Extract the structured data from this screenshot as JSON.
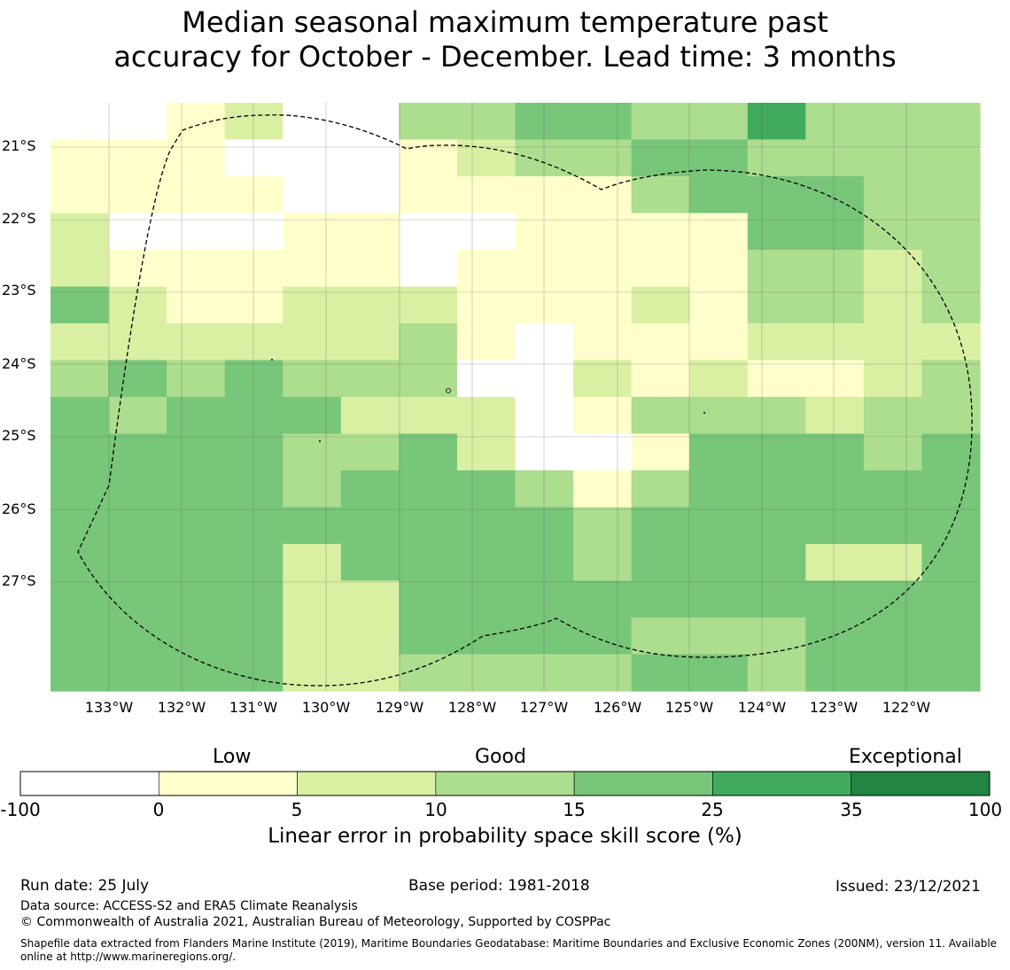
{
  "title_lines": [
    "Median seasonal maximum temperature past",
    "accuracy for October - December. Lead time: 3 months"
  ],
  "map": {
    "lat_labels": [
      "21°S",
      "22°S",
      "23°S",
      "24°S",
      "25°S",
      "26°S",
      "27°S"
    ],
    "lon_labels": [
      "133°W",
      "132°W",
      "131°W",
      "130°W",
      "129°W",
      "128°W",
      "127°W",
      "126°W",
      "125°W",
      "124°W",
      "123°W",
      "122°W"
    ],
    "grid_levels": [
      [
        0,
        0,
        1,
        2,
        0,
        0,
        3,
        3,
        4,
        4,
        3,
        3,
        5,
        3,
        3,
        3
      ],
      [
        1,
        1,
        1,
        0,
        0,
        0,
        1,
        2,
        3,
        3,
        4,
        4,
        3,
        3,
        3,
        3
      ],
      [
        1,
        1,
        1,
        1,
        0,
        0,
        1,
        1,
        1,
        1,
        3,
        4,
        4,
        4,
        3,
        3
      ],
      [
        2,
        0,
        0,
        0,
        1,
        1,
        0,
        0,
        1,
        1,
        1,
        1,
        4,
        4,
        3,
        3
      ],
      [
        2,
        1,
        1,
        1,
        1,
        1,
        0,
        1,
        1,
        1,
        1,
        1,
        3,
        3,
        2,
        3
      ],
      [
        4,
        2,
        1,
        1,
        2,
        2,
        2,
        1,
        1,
        1,
        2,
        1,
        3,
        3,
        2,
        3
      ],
      [
        2,
        2,
        2,
        2,
        2,
        2,
        3,
        1,
        0,
        1,
        1,
        1,
        2,
        2,
        2,
        2
      ],
      [
        3,
        4,
        3,
        4,
        3,
        3,
        3,
        0,
        0,
        2,
        1,
        2,
        1,
        1,
        2,
        3
      ],
      [
        4,
        3,
        4,
        4,
        4,
        2,
        2,
        2,
        0,
        1,
        3,
        3,
        3,
        2,
        3,
        3
      ],
      [
        4,
        4,
        4,
        4,
        3,
        3,
        4,
        2,
        0,
        0,
        1,
        4,
        4,
        4,
        3,
        4
      ],
      [
        4,
        4,
        4,
        4,
        3,
        4,
        4,
        4,
        3,
        1,
        3,
        4,
        4,
        4,
        4,
        4
      ],
      [
        4,
        4,
        4,
        4,
        4,
        4,
        4,
        4,
        4,
        3,
        4,
        4,
        4,
        4,
        4,
        4
      ],
      [
        4,
        4,
        4,
        4,
        2,
        4,
        4,
        4,
        4,
        3,
        4,
        4,
        4,
        2,
        2,
        4
      ],
      [
        4,
        4,
        4,
        4,
        2,
        2,
        4,
        4,
        4,
        4,
        4,
        4,
        4,
        4,
        4,
        4
      ],
      [
        4,
        4,
        4,
        4,
        2,
        2,
        4,
        4,
        4,
        4,
        3,
        3,
        3,
        4,
        4,
        4
      ],
      [
        4,
        4,
        4,
        4,
        2,
        2,
        3,
        3,
        3,
        3,
        4,
        4,
        3,
        4,
        4,
        4
      ]
    ]
  },
  "colorbar": {
    "category_labels": [
      "Low",
      "Good",
      "Exceptional"
    ],
    "ticks": [
      "-100",
      "0",
      "5",
      "10",
      "15",
      "25",
      "35",
      "100"
    ],
    "colors": [
      "#ffffff",
      "#ffffcc",
      "#d9f0a3",
      "#addd8e",
      "#78c679",
      "#41ab5d",
      "#238443"
    ],
    "label": "Linear error in probability space skill score (%)"
  },
  "footer": {
    "run_date": "Run date: 25 July",
    "base_period": "Base period: 1981-2018",
    "issued": "Issued: 23/12/2021",
    "data_source": "Data source: ACCESS-S2 and ERA5 Climate Reanalysis",
    "copyright": "© Commonwealth of Australia 2021, Australian Bureau of Meteorology, Supported by COSPPac",
    "shapefile_line1": "Shapefile data extracted from Flanders Marine Institute (2019), Maritime Boundaries Geodatabase: Maritime Boundaries and Exclusive Economic Zones (200NM), version 11. Available",
    "shapefile_line2": "online at http://www.marineregions.org/."
  }
}
